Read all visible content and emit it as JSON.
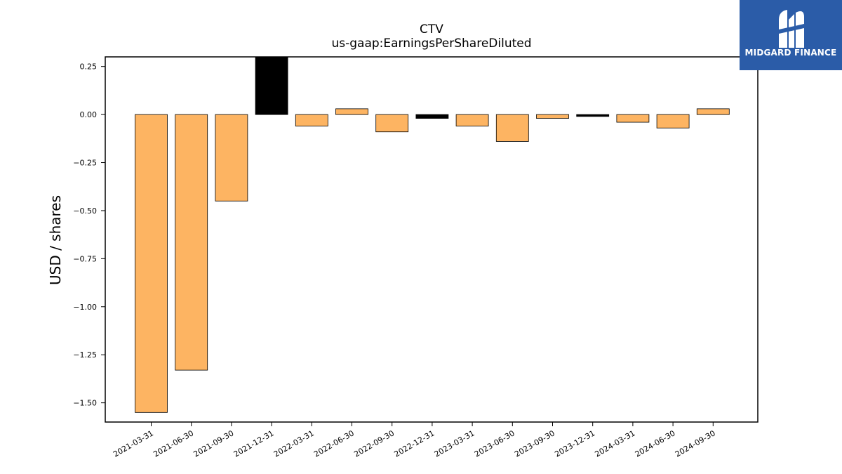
{
  "title_lines": [
    "CTV",
    "us-gaap:EarningsPerShareDiluted"
  ],
  "logo": {
    "text": "MIDGARD FINANCE",
    "color": "#2b5ca8"
  },
  "chart_data": {
    "type": "bar",
    "title": "CTV\nus-gaap:EarningsPerShareDiluted",
    "ylabel": "USD / shares",
    "xlabel": "",
    "ylim": [
      -1.6,
      0.3
    ],
    "yticks": [
      0.25,
      0.0,
      -0.25,
      -0.5,
      -0.75,
      -1.0,
      -1.25,
      -1.5
    ],
    "ytick_labels": [
      "0.25",
      "0.00",
      "−0.25",
      "−0.50",
      "−0.75",
      "−1.00",
      "−1.25",
      "−1.50"
    ],
    "categories": [
      "2021-03-31",
      "2021-06-30",
      "2021-09-30",
      "2021-12-31",
      "2022-03-31",
      "2022-06-30",
      "2022-09-30",
      "2022-12-31",
      "2023-03-31",
      "2023-06-30",
      "2023-09-30",
      "2023-12-31",
      "2024-03-31",
      "2024-06-30",
      "2024-09-30"
    ],
    "values": [
      -1.55,
      -1.33,
      -0.45,
      0.3,
      -0.06,
      0.03,
      -0.09,
      -0.02,
      -0.06,
      -0.14,
      -0.02,
      -0.01,
      -0.04,
      -0.07,
      0.03
    ],
    "bar_colors": [
      "#fdb462",
      "#fdb462",
      "#fdb462",
      "#000000",
      "#fdb462",
      "#fdb462",
      "#fdb462",
      "#000000",
      "#fdb462",
      "#fdb462",
      "#fdb462",
      "#000000",
      "#fdb462",
      "#fdb462",
      "#fdb462"
    ],
    "grid": false
  }
}
